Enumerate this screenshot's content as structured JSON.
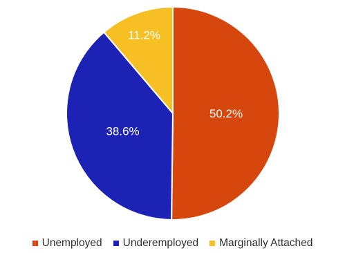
{
  "chart_data": {
    "type": "pie",
    "title": "",
    "labels": [
      "Unemployed",
      "Underemployed",
      "Marginally Attached"
    ],
    "values": [
      50.2,
      38.6,
      11.2
    ],
    "value_labels": [
      "50.2%",
      "38.6%",
      "11.2%"
    ],
    "colors": [
      "#d5470d",
      "#1c22b4",
      "#f6bf24"
    ],
    "start": "12 o'clock",
    "direction": "clockwise",
    "legend_position": "bottom"
  }
}
